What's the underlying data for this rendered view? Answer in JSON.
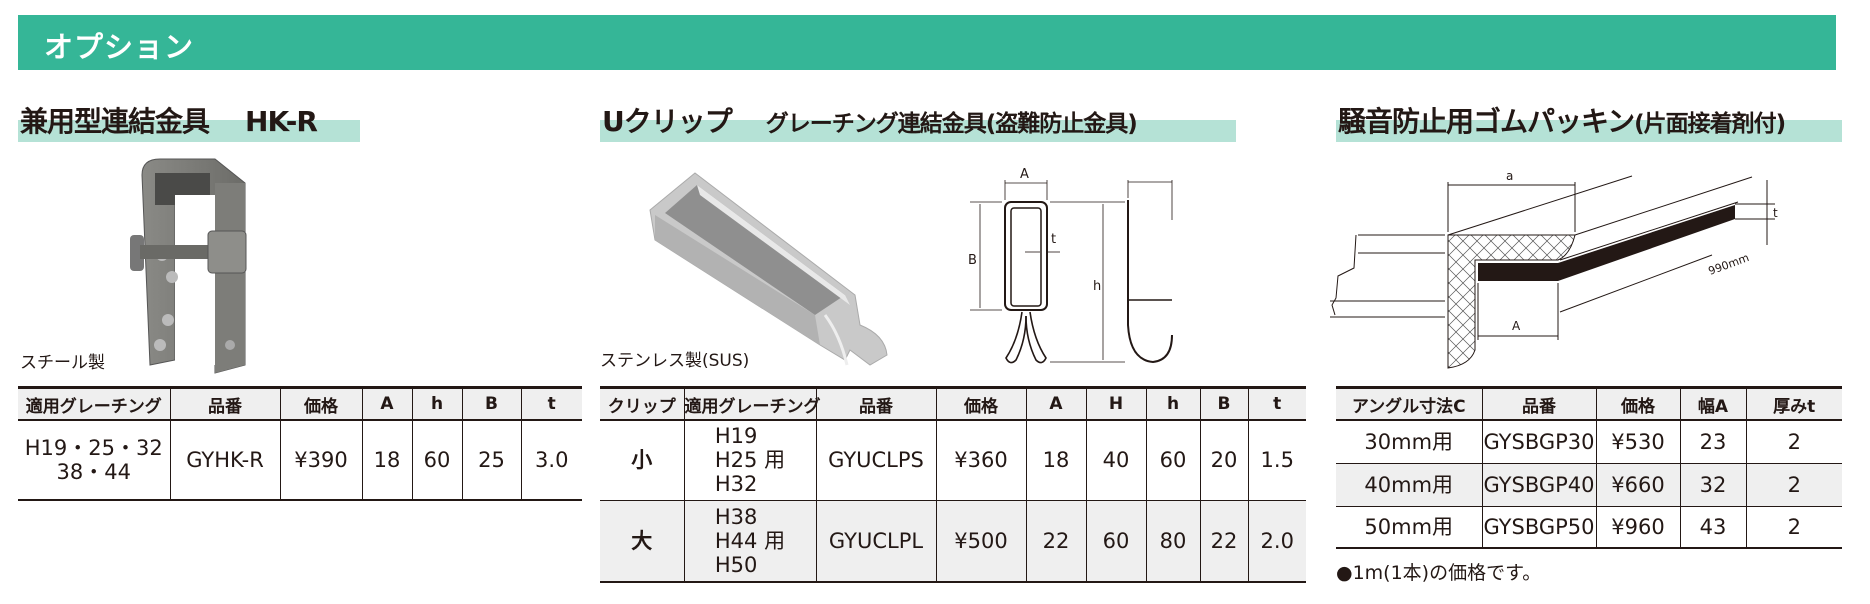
{
  "header": {
    "title": "オプション"
  },
  "colors": {
    "banner": "#35b697",
    "heading_band": "#b5e2d6",
    "row_shade": "#efefef"
  },
  "sections": [
    {
      "title": "兼用型連結金具",
      "model": "HK-R",
      "material": "スチール製",
      "table": {
        "columns": [
          "適用グレーチング",
          "品番",
          "価格",
          "A",
          "h",
          "B",
          "t"
        ],
        "rows": [
          {
            "grating": [
              "H19・25・32",
              "38・44"
            ],
            "code": "GYHK-R",
            "price": "¥390",
            "A": "18",
            "h": "60",
            "B": "25",
            "t": "3.0"
          }
        ]
      }
    },
    {
      "title": "Uクリップ",
      "subtitle": "グレーチング連結金具(盗難防止金具)",
      "material": "ステンレス製(SUS)",
      "diagram_labels": {
        "A": "A",
        "B": "B",
        "h": "h",
        "t": "t"
      },
      "table": {
        "columns": [
          "クリップ",
          "適用グレーチング",
          "品番",
          "価格",
          "A",
          "H",
          "h",
          "B",
          "t"
        ],
        "rows": [
          {
            "size": "小",
            "grating": [
              "H19",
              "H25 用",
              "H32"
            ],
            "code": "GYUCLPS",
            "price": "¥360",
            "A": "18",
            "H": "40",
            "h": "60",
            "B": "20",
            "t": "1.5"
          },
          {
            "size": "大",
            "grating": [
              "H38",
              "H44 用",
              "H50"
            ],
            "code": "GYUCLPL",
            "price": "¥500",
            "A": "22",
            "H": "60",
            "h": "80",
            "B": "22",
            "t": "2.0"
          }
        ]
      }
    },
    {
      "title": "騒音防止用ゴムパッキン",
      "subtitle": "(片面接着剤付)",
      "diagram_labels": {
        "a": "a",
        "A": "A",
        "t": "t",
        "length": "990mm"
      },
      "table": {
        "columns": [
          "アングル寸法C",
          "品番",
          "価格",
          "幅A",
          "厚みt"
        ],
        "rows": [
          {
            "angle": "30mm用",
            "code": "GYSBGP30",
            "price": "¥530",
            "A": "23",
            "t": "2"
          },
          {
            "angle": "40mm用",
            "code": "GYSBGP40",
            "price": "¥660",
            "A": "32",
            "t": "2"
          },
          {
            "angle": "50mm用",
            "code": "GYSBGP50",
            "price": "¥960",
            "A": "43",
            "t": "2"
          }
        ]
      },
      "note": "●1m(1本)の価格です。"
    }
  ]
}
